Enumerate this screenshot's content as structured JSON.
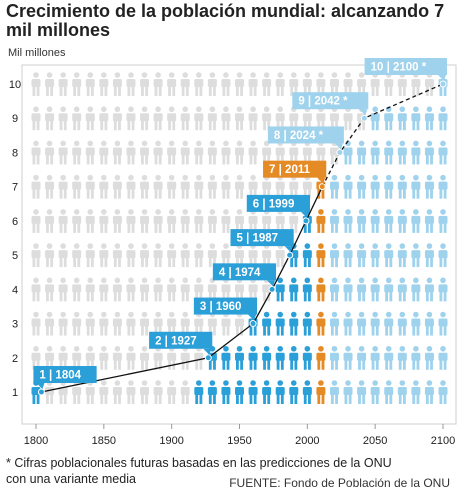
{
  "title": "Crecimiento de la población mundial: alcanzando 7 mil millones",
  "footnote_line1": "* Cifras poblacionales futuras basadas en las predicciones de la ONU",
  "footnote_line2": "con una variante media",
  "source": "FUENTE: Fondo de Población de la ONU",
  "colors": {
    "past": "#2a9fd8",
    "current": "#e58b25",
    "future": "#9fd2ec",
    "background_figure": "#dddddd",
    "line": "#111111"
  },
  "chart_data": {
    "type": "line",
    "title": "Crecimiento de la población mundial: alcanzando 7 mil millones",
    "ylabel": "Mil millones",
    "xlabel": "",
    "xlim": [
      1800,
      2100
    ],
    "ylim": [
      0.5,
      10.9
    ],
    "xticks": [
      1800,
      1850,
      1900,
      1950,
      2000,
      2050,
      2100
    ],
    "yticks": [
      1,
      2,
      3,
      4,
      5,
      6,
      7,
      8,
      9,
      10
    ],
    "grid": false,
    "series": [
      {
        "observed_points": [
          [
            1804,
            1
          ],
          [
            1927,
            2
          ],
          [
            1960,
            3
          ],
          [
            1974,
            4
          ],
          [
            1987,
            5
          ],
          [
            1999,
            6
          ],
          [
            2011,
            7
          ]
        ],
        "projected_points": [
          [
            2011,
            7
          ],
          [
            2024,
            8
          ],
          [
            2042,
            9
          ],
          [
            2100,
            10
          ]
        ]
      }
    ],
    "milestones": [
      {
        "billion": 1,
        "year": 1804,
        "label": "1 | 1804",
        "status": "past"
      },
      {
        "billion": 2,
        "year": 1927,
        "label": "2 | 1927",
        "status": "past"
      },
      {
        "billion": 3,
        "year": 1960,
        "label": "3 | 1960",
        "status": "past"
      },
      {
        "billion": 4,
        "year": 1974,
        "label": "4 | 1974",
        "status": "past"
      },
      {
        "billion": 5,
        "year": 1987,
        "label": "5 | 1987",
        "status": "past"
      },
      {
        "billion": 6,
        "year": 1999,
        "label": "6 | 1999",
        "status": "past"
      },
      {
        "billion": 7,
        "year": 2011,
        "label": "7 | 2011",
        "status": "current"
      },
      {
        "billion": 8,
        "year": 2024,
        "label": "8 | 2024 *",
        "status": "future"
      },
      {
        "billion": 9,
        "year": 2042,
        "label": "9 | 2042 *",
        "status": "future"
      },
      {
        "billion": 10,
        "year": 2100,
        "label": "10 | 2100 *",
        "status": "future"
      }
    ]
  }
}
